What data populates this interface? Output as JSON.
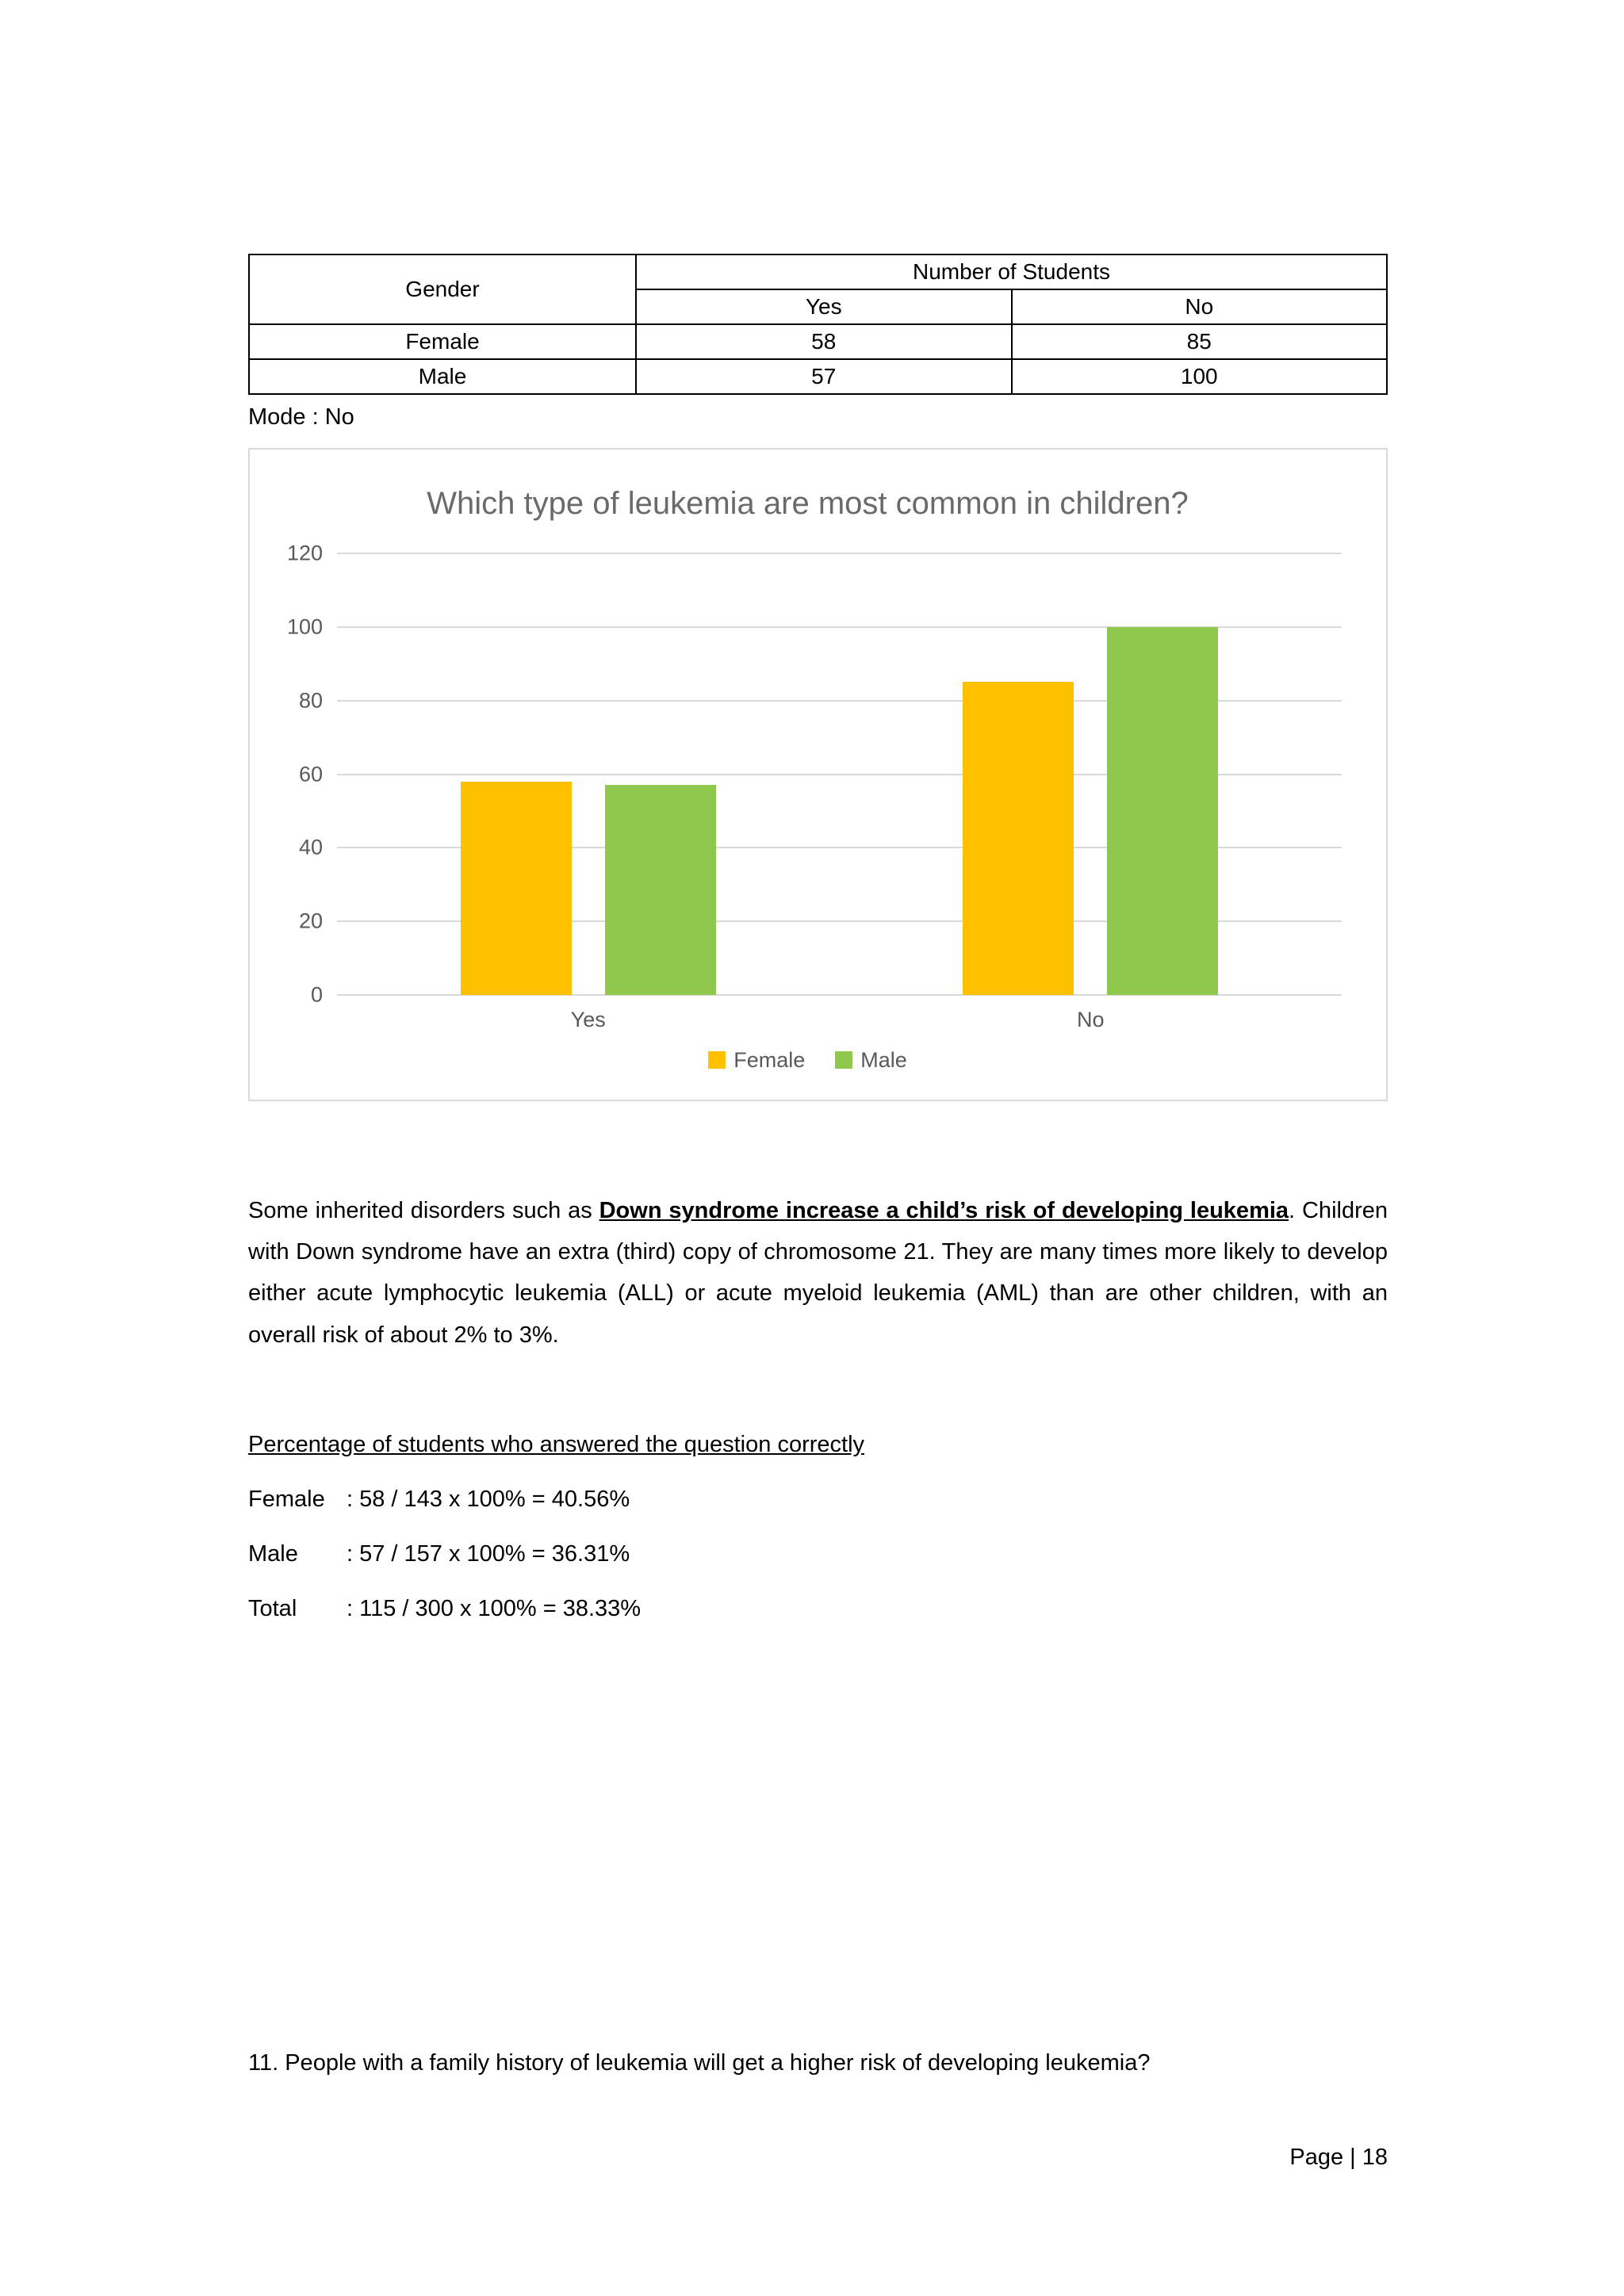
{
  "table": {
    "gender_header": "Gender",
    "number_header": "Number of Students",
    "col_yes": "Yes",
    "col_no": "No",
    "rows": [
      {
        "gender": "Female",
        "yes": "58",
        "no": "85"
      },
      {
        "gender": "Male",
        "yes": "57",
        "no": "100"
      }
    ]
  },
  "mode_label": "Mode : No",
  "chart_data": {
    "type": "bar",
    "title": "Which type of leukemia are most common in children?",
    "categories": [
      "Yes",
      "No"
    ],
    "series": [
      {
        "name": "Female",
        "color": "#FFC000",
        "values": [
          58,
          85
        ]
      },
      {
        "name": "Male",
        "color": "#8FC84D",
        "values": [
          57,
          100
        ]
      }
    ],
    "xlabel": "",
    "ylabel": "",
    "ylim": [
      0,
      120
    ],
    "ytick_step": 20,
    "grid": true,
    "legend_position": "bottom"
  },
  "paragraph": {
    "lead": "Some inherited disorders such as ",
    "bold_underline": "Down syndrome increase a child’s risk of developing leukemia",
    "after_bold": ". Children with Down syndrome have an extra (third) copy of chromosome 21. They are many times more likely to develop either acute lymphocytic leukemia (ALL) or acute myeloid leukemia (AML) than are other children, with an overall risk of about 2% to 3%."
  },
  "percentage_section": {
    "heading": "Percentage of students who answered the question correctly",
    "lines": [
      {
        "label": "Female",
        "rest": ": 58 / 143  x 100% =  40.56%"
      },
      {
        "label": "Male",
        "rest": ": 57 / 157  x 100% =  36.31%"
      },
      {
        "label": "Total",
        "rest": ": 115 / 300  x 100% = 38.33%"
      }
    ]
  },
  "question": "11. People with a family history of leukemia will get a higher risk of developing leukemia?",
  "footer": {
    "page_label": "Page | 18"
  }
}
